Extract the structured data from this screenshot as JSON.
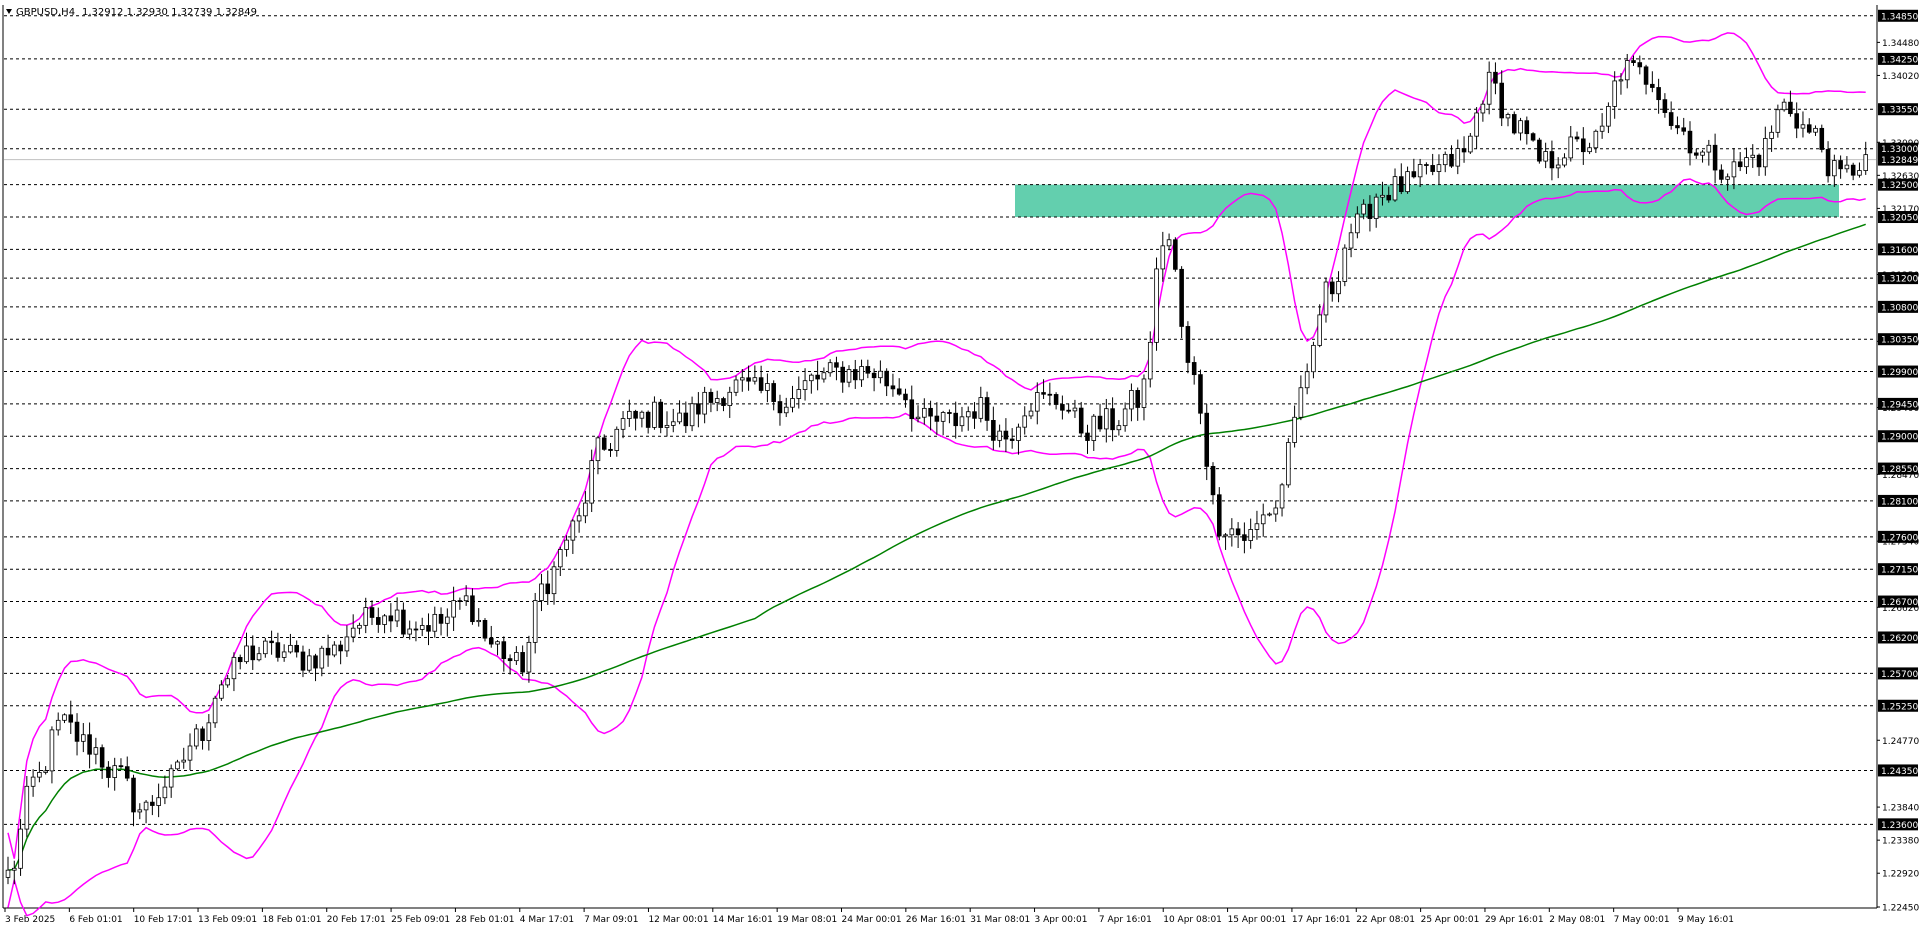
{
  "header": {
    "symbol": "GBPUSD,H4",
    "quotes": "1.32912 1.32930 1.32739 1.32849"
  },
  "colors": {
    "background": "#ffffff",
    "candle": "#000000",
    "bollinger": "#ff00ff",
    "moving_average": "#008000",
    "zone": "#3cc39a",
    "level_line": "#000000",
    "current_price_line": "#c0c0c0"
  },
  "chart_data": {
    "type": "candlestick",
    "title": "GBPUSD,H4",
    "ylim": [
      1.2245,
      1.35
    ],
    "y_ticks": [
      1.2245,
      1.2292,
      1.2338,
      1.2384,
      1.2477,
      1.2662,
      1.2754,
      1.2847,
      1.294,
      1.3032,
      1.3125,
      1.3217,
      1.3263,
      1.3309,
      1.3402,
      1.3448
    ],
    "y_tick_labels": [
      "1.22450",
      "1.22920",
      "1.23380",
      "1.23840",
      "1.24770",
      "1.26620",
      "1.27540",
      "1.28470",
      "1.29400",
      "1.30320",
      "1.31250",
      "1.32170",
      "1.32630",
      "1.33090",
      "1.34020",
      "1.34480"
    ],
    "levels": [
      1.3485,
      1.3425,
      1.3355,
      1.33,
      1.325,
      1.3205,
      1.316,
      1.312,
      1.308,
      1.3035,
      1.299,
      1.2945,
      1.29,
      1.2855,
      1.281,
      1.276,
      1.2715,
      1.267,
      1.262,
      1.257,
      1.2525,
      1.2435,
      1.236
    ],
    "level_labels": [
      "1.34850",
      "1.34250",
      "1.33550",
      "1.33000",
      "1.32500",
      "1.32050",
      "1.31600",
      "1.31200",
      "1.30800",
      "1.30350",
      "1.29900",
      "1.29450",
      "1.29000",
      "1.28550",
      "1.28100",
      "1.27600",
      "1.27150",
      "1.26700",
      "1.26200",
      "1.25700",
      "1.25250",
      "1.24350",
      "1.23600"
    ],
    "current_price": 1.32849,
    "current_price_label": "1.32849",
    "zone": {
      "low": 1.3205,
      "high": 1.325,
      "from": "2 Apr 12:00",
      "to": "9 May 20:00"
    },
    "x_tick_labels": [
      "3 Feb 2025",
      "6 Feb 01:01",
      "10 Feb 17:01",
      "13 Feb 09:01",
      "18 Feb 01:01",
      "20 Feb 17:01",
      "25 Feb 09:01",
      "28 Feb 01:01",
      "4 Mar 17:01",
      "7 Mar 09:01",
      "12 Mar 00:01",
      "14 Mar 16:01",
      "19 Mar 08:01",
      "24 Mar 00:01",
      "26 Mar 16:01",
      "31 Mar 08:01",
      "3 Apr 00:01",
      "7 Apr 16:01",
      "10 Apr 08:01",
      "15 Apr 00:01",
      "17 Apr 16:01",
      "22 Apr 08:01",
      "25 Apr 00:01",
      "29 Apr 16:01",
      "2 May 08:01",
      "7 May 00:01",
      "9 May 16:01"
    ],
    "bar_count": 297,
    "price_path": [
      [
        "3 Feb",
        1.229
      ],
      [
        "4 Feb",
        1.242
      ],
      [
        "5 Feb",
        1.25
      ],
      [
        "6 Feb",
        1.247
      ],
      [
        "7 Feb",
        1.243
      ],
      [
        "10 Feb",
        1.238
      ],
      [
        "11 Feb",
        1.242
      ],
      [
        "12 Feb",
        1.248
      ],
      [
        "13 Feb",
        1.256
      ],
      [
        "14 Feb",
        1.26
      ],
      [
        "17 Feb",
        1.26
      ],
      [
        "18 Feb",
        1.259
      ],
      [
        "19 Feb",
        1.26
      ],
      [
        "20 Feb",
        1.264
      ],
      [
        "21 Feb",
        1.266
      ],
      [
        "24 Feb",
        1.264
      ],
      [
        "25 Feb",
        1.264
      ],
      [
        "26 Feb",
        1.267
      ],
      [
        "27 Feb",
        1.261
      ],
      [
        "28 Feb",
        1.258
      ],
      [
        "3 Mar",
        1.27
      ],
      [
        "4 Mar",
        1.277
      ],
      [
        "5 Mar",
        1.288
      ],
      [
        "6 Mar",
        1.292
      ],
      [
        "7 Mar",
        1.293
      ],
      [
        "10 Mar",
        1.292
      ],
      [
        "11 Mar",
        1.295
      ],
      [
        "12 Mar",
        1.297
      ],
      [
        "13 Mar",
        1.296
      ],
      [
        "14 Mar",
        1.295
      ],
      [
        "17 Mar",
        1.298
      ],
      [
        "18 Mar",
        1.299
      ],
      [
        "19 Mar",
        1.299
      ],
      [
        "20 Mar",
        1.297
      ],
      [
        "21 Mar",
        1.292
      ],
      [
        "24 Mar",
        1.292
      ],
      [
        "25 Mar",
        1.294
      ],
      [
        "26 Mar",
        1.29
      ],
      [
        "27 Mar",
        1.295
      ],
      [
        "28 Mar",
        1.295
      ],
      [
        "31 Mar",
        1.291
      ],
      [
        "1 Apr",
        1.292
      ],
      [
        "2 Apr",
        1.295
      ],
      [
        "3 Apr",
        1.318
      ],
      [
        "4 Apr",
        1.298
      ],
      [
        "7 Apr",
        1.278
      ],
      [
        "8 Apr",
        1.276
      ],
      [
        "9 Apr",
        1.28
      ],
      [
        "10 Apr",
        1.295
      ],
      [
        "11 Apr",
        1.31
      ],
      [
        "14 Apr",
        1.319
      ],
      [
        "15 Apr",
        1.324
      ],
      [
        "16 Apr",
        1.325
      ],
      [
        "17 Apr",
        1.327
      ],
      [
        "18 Apr",
        1.329
      ],
      [
        "21 Apr",
        1.339
      ],
      [
        "22 Apr",
        1.333
      ],
      [
        "23 Apr",
        1.328
      ],
      [
        "24 Apr",
        1.33
      ],
      [
        "25 Apr",
        1.331
      ],
      [
        "28 Apr",
        1.341
      ],
      [
        "29 Apr",
        1.34
      ],
      [
        "30 Apr",
        1.333
      ],
      [
        "1 May",
        1.329
      ],
      [
        "2 May",
        1.327
      ],
      [
        "5 May",
        1.329
      ],
      [
        "6 May",
        1.336
      ],
      [
        "7 May",
        1.332
      ],
      [
        "8 May",
        1.326
      ],
      [
        "9 May",
        1.3285
      ]
    ],
    "series": [
      {
        "name": "Candles (OHLC)",
        "style": "candlestick"
      },
      {
        "name": "Bollinger upper",
        "style": "line"
      },
      {
        "name": "Bollinger lower",
        "style": "line"
      },
      {
        "name": "Moving average",
        "style": "line"
      }
    ],
    "grid": false
  }
}
